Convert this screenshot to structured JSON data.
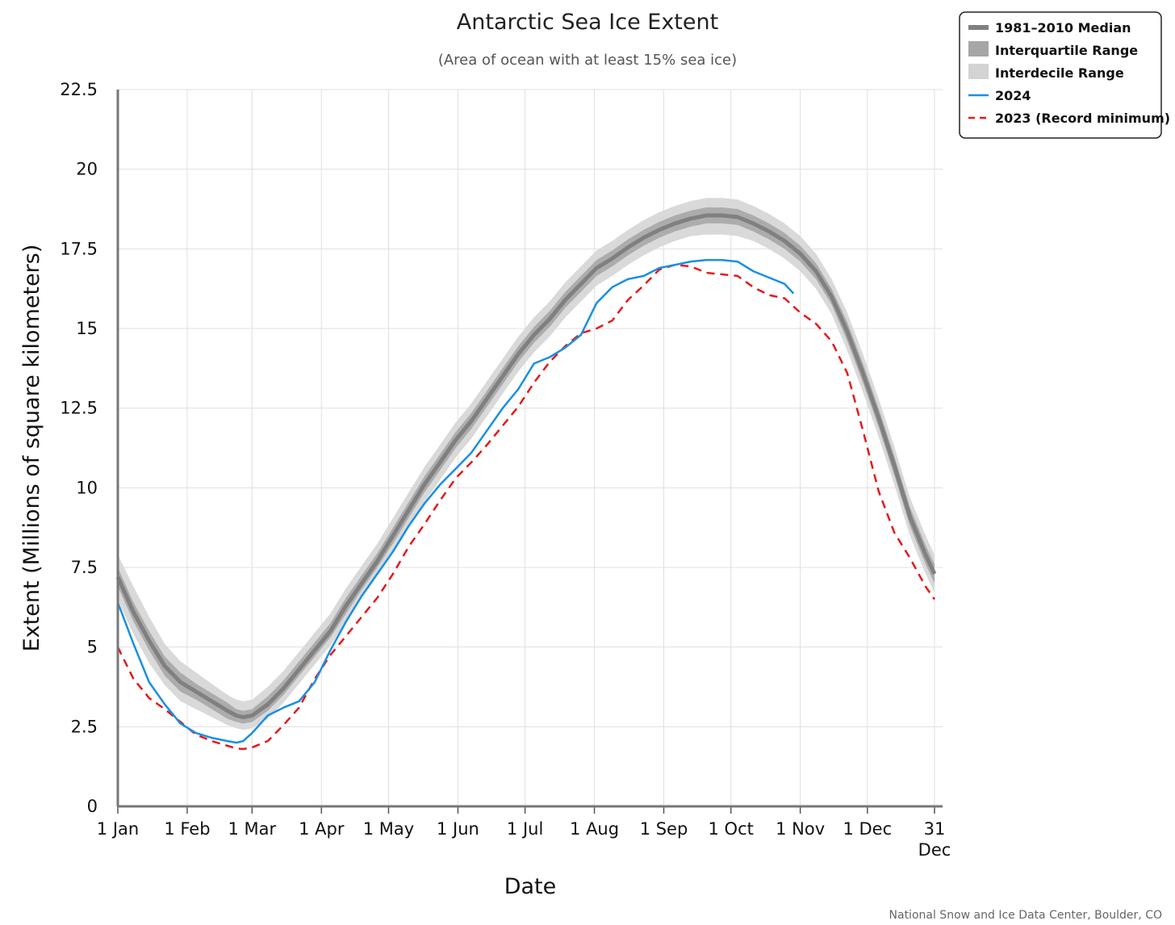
{
  "chart_data": {
    "type": "line",
    "title": "Antarctic Sea Ice Extent",
    "subtitle": "(Area of ocean with at least 15% sea ice)",
    "xlabel": "Date",
    "ylabel": "Extent (Millions of square kilometers)",
    "credit": "National Snow and Ice Data Center, Boulder, CO",
    "xlim": [
      1,
      366
    ],
    "ylim": [
      0,
      22.5
    ],
    "grid": true,
    "legend_position": "top-right",
    "x_ticks": [
      {
        "day": 1,
        "label": "1 Jan"
      },
      {
        "day": 32,
        "label": "1 Feb"
      },
      {
        "day": 61,
        "label": "1 Mar"
      },
      {
        "day": 92,
        "label": "1 Apr"
      },
      {
        "day": 122,
        "label": "1 May"
      },
      {
        "day": 153,
        "label": "1 Jun"
      },
      {
        "day": 183,
        "label": "1 Jul"
      },
      {
        "day": 214,
        "label": "1 Aug"
      },
      {
        "day": 245,
        "label": "1 Sep"
      },
      {
        "day": 275,
        "label": "1 Oct"
      },
      {
        "day": 306,
        "label": "1 Nov"
      },
      {
        "day": 336,
        "label": "1 Dec"
      },
      {
        "day": 366,
        "label": "31",
        "label2": "Dec"
      }
    ],
    "y_ticks": [
      0,
      2.5,
      5,
      7.5,
      10,
      12.5,
      15,
      17.5,
      20,
      22.5
    ],
    "y_tick_labels": [
      "0",
      "2.5",
      "5",
      "7.5",
      "10",
      "12.5",
      "15",
      "17.5",
      "20",
      "22.5"
    ],
    "x": [
      1,
      8,
      15,
      22,
      29,
      36,
      43,
      50,
      54,
      57,
      61,
      68,
      75,
      82,
      89,
      96,
      103,
      110,
      117,
      124,
      131,
      138,
      145,
      152,
      159,
      166,
      173,
      180,
      187,
      194,
      201,
      208,
      215,
      222,
      229,
      236,
      243,
      250,
      257,
      264,
      271,
      278,
      285,
      292,
      299,
      306,
      313,
      320,
      327,
      334,
      341,
      348,
      355,
      362,
      366
    ],
    "series": [
      {
        "name": "1981–2010 Median",
        "color": "#808080",
        "values": [
          7.2,
          6.1,
          5.2,
          4.4,
          3.9,
          3.6,
          3.3,
          3.0,
          2.85,
          2.8,
          2.85,
          3.2,
          3.7,
          4.3,
          4.9,
          5.5,
          6.3,
          7.0,
          7.7,
          8.5,
          9.3,
          10.1,
          10.8,
          11.5,
          12.1,
          12.8,
          13.5,
          14.2,
          14.8,
          15.3,
          15.9,
          16.4,
          16.9,
          17.2,
          17.55,
          17.85,
          18.1,
          18.3,
          18.45,
          18.55,
          18.55,
          18.5,
          18.3,
          18.05,
          17.75,
          17.35,
          16.8,
          16.0,
          14.9,
          13.6,
          12.2,
          10.7,
          9.1,
          7.9,
          7.3
        ],
        "interquartile_low": [
          6.9,
          5.8,
          4.9,
          4.1,
          3.6,
          3.35,
          3.05,
          2.75,
          2.65,
          2.6,
          2.65,
          3.0,
          3.5,
          4.1,
          4.7,
          5.3,
          6.05,
          6.8,
          7.5,
          8.25,
          9.05,
          9.85,
          10.55,
          11.25,
          11.85,
          12.55,
          13.25,
          13.95,
          14.55,
          15.05,
          15.65,
          16.15,
          16.65,
          16.95,
          17.3,
          17.6,
          17.85,
          18.05,
          18.2,
          18.3,
          18.3,
          18.25,
          18.05,
          17.8,
          17.5,
          17.1,
          16.55,
          15.75,
          14.6,
          13.3,
          11.9,
          10.4,
          8.8,
          7.6,
          7.0
        ],
        "interquartile_high": [
          7.5,
          6.4,
          5.5,
          4.7,
          4.2,
          3.85,
          3.55,
          3.25,
          3.05,
          3.0,
          3.05,
          3.45,
          3.95,
          4.55,
          5.15,
          5.75,
          6.55,
          7.25,
          7.95,
          8.75,
          9.55,
          10.35,
          11.05,
          11.75,
          12.35,
          13.05,
          13.75,
          14.45,
          15.05,
          15.55,
          16.15,
          16.65,
          17.15,
          17.45,
          17.8,
          18.1,
          18.35,
          18.55,
          18.7,
          18.8,
          18.8,
          18.75,
          18.55,
          18.3,
          18.0,
          17.6,
          17.05,
          16.25,
          15.2,
          13.9,
          12.5,
          11.0,
          9.4,
          8.2,
          7.6
        ],
        "interdecile_low": [
          6.5,
          5.4,
          4.5,
          3.8,
          3.3,
          3.05,
          2.8,
          2.55,
          2.45,
          2.4,
          2.45,
          2.75,
          3.25,
          3.85,
          4.45,
          5.05,
          5.8,
          6.55,
          7.25,
          8.0,
          8.75,
          9.55,
          10.25,
          10.95,
          11.55,
          12.25,
          12.95,
          13.65,
          14.25,
          14.75,
          15.35,
          15.85,
          16.35,
          16.65,
          17.0,
          17.3,
          17.55,
          17.75,
          17.9,
          17.95,
          17.95,
          17.9,
          17.75,
          17.5,
          17.2,
          16.8,
          16.25,
          15.45,
          14.3,
          13.0,
          11.6,
          10.1,
          8.5,
          7.3,
          6.7
        ],
        "interdecile_high": [
          7.9,
          6.9,
          5.95,
          5.1,
          4.55,
          4.2,
          3.85,
          3.5,
          3.35,
          3.3,
          3.35,
          3.75,
          4.25,
          4.85,
          5.45,
          6.05,
          6.85,
          7.55,
          8.25,
          9.05,
          9.85,
          10.65,
          11.35,
          12.05,
          12.65,
          13.35,
          14.05,
          14.75,
          15.35,
          15.85,
          16.45,
          16.95,
          17.45,
          17.75,
          18.1,
          18.4,
          18.65,
          18.85,
          19.0,
          19.1,
          19.1,
          19.05,
          18.85,
          18.6,
          18.3,
          17.9,
          17.35,
          16.55,
          15.5,
          14.2,
          12.8,
          11.3,
          9.7,
          8.5,
          7.9
        ]
      },
      {
        "name": "2024",
        "color": "#1a8fe3",
        "x": [
          1,
          8,
          15,
          22,
          29,
          36,
          43,
          50,
          54,
          57,
          61,
          68,
          75,
          82,
          89,
          96,
          103,
          110,
          117,
          124,
          131,
          138,
          145,
          152,
          159,
          166,
          173,
          180,
          187,
          194,
          201,
          208,
          215,
          222,
          229,
          236,
          243,
          250,
          257,
          264,
          271,
          278,
          285,
          292,
          299,
          303
        ],
        "values": [
          6.4,
          5.1,
          3.9,
          3.2,
          2.6,
          2.3,
          2.15,
          2.05,
          2.0,
          2.05,
          2.3,
          2.85,
          3.1,
          3.3,
          3.9,
          4.9,
          5.8,
          6.6,
          7.3,
          8.0,
          8.8,
          9.5,
          10.1,
          10.6,
          11.1,
          11.8,
          12.5,
          13.1,
          13.9,
          14.1,
          14.4,
          14.8,
          15.8,
          16.3,
          16.55,
          16.65,
          16.9,
          17.0,
          17.1,
          17.15,
          17.15,
          17.1,
          16.8,
          16.6,
          16.4,
          16.1
        ]
      },
      {
        "name": "2023 (Record minimum)",
        "color": "#e31a1c",
        "values": [
          5.0,
          4.0,
          3.4,
          3.05,
          2.65,
          2.25,
          2.05,
          1.9,
          1.82,
          1.8,
          1.85,
          2.05,
          2.55,
          3.1,
          4.0,
          4.75,
          5.35,
          5.95,
          6.55,
          7.3,
          8.15,
          8.85,
          9.6,
          10.3,
          10.8,
          11.35,
          11.95,
          12.55,
          13.3,
          13.95,
          14.45,
          14.85,
          15.0,
          15.25,
          15.9,
          16.35,
          16.85,
          17.0,
          16.95,
          16.75,
          16.7,
          16.65,
          16.3,
          16.05,
          15.95,
          15.5,
          15.15,
          14.6,
          13.6,
          11.8,
          9.9,
          8.6,
          7.8,
          6.9,
          6.5
        ]
      }
    ]
  }
}
